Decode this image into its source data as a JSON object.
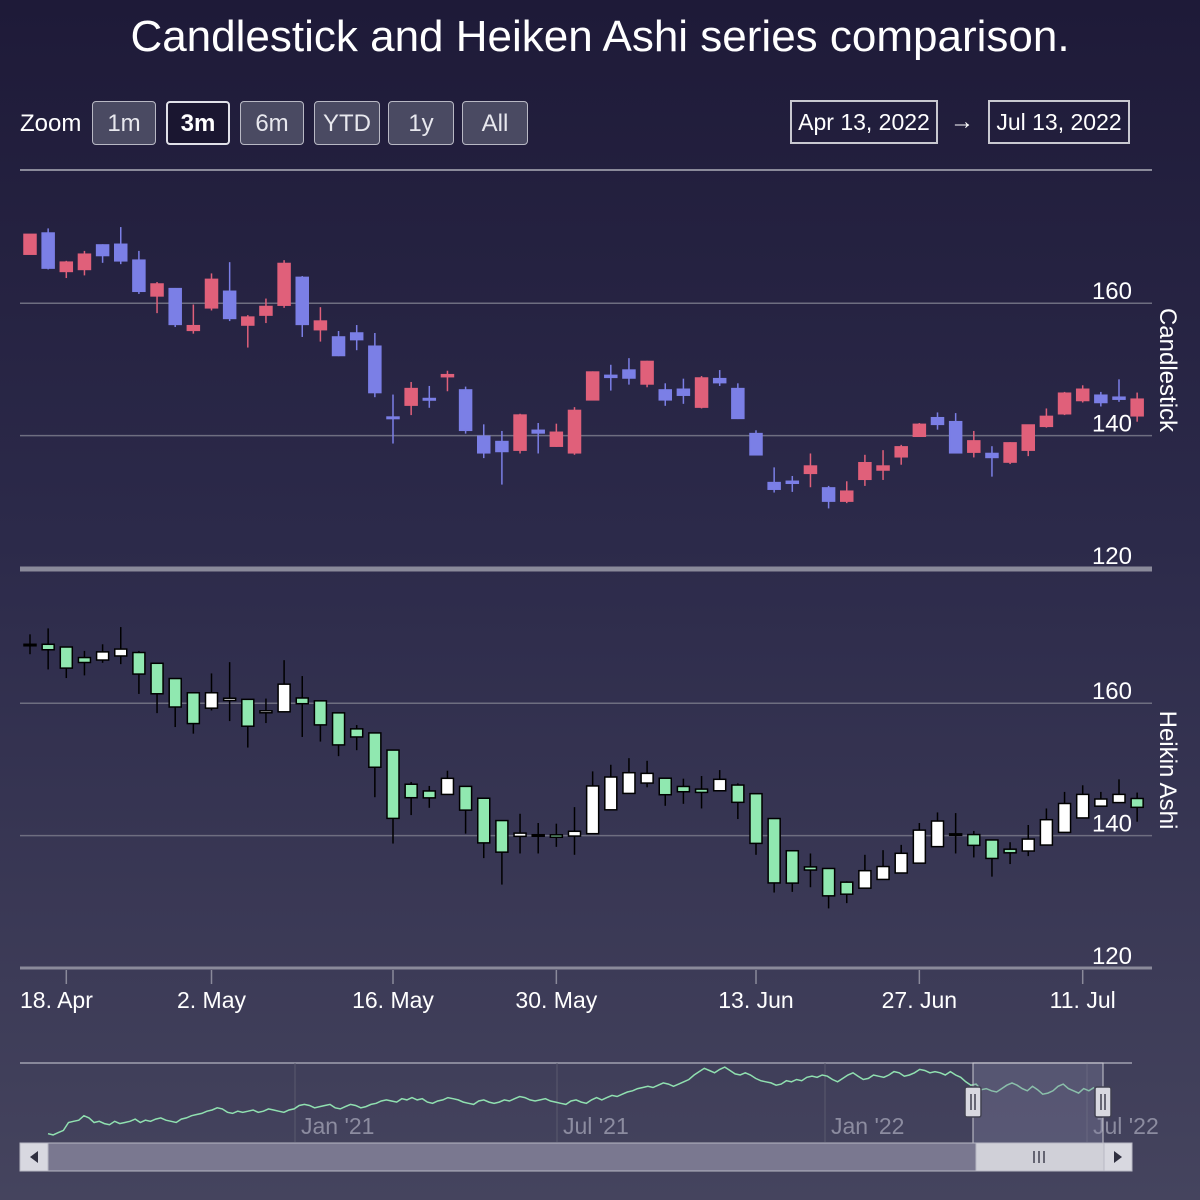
{
  "title": "Candlestick and Heiken Ashi series comparison.",
  "range_selector": {
    "zoom_label": "Zoom",
    "buttons": [
      "1m",
      "3m",
      "6m",
      "YTD",
      "1y",
      "All"
    ],
    "selected": "3m",
    "from": "Apr 13, 2022",
    "arrow": "→",
    "to": "Jul 13, 2022"
  },
  "colors": {
    "candle_up": "#e0607a",
    "candle_down": "#7b7fe6",
    "ha_up": "#ffffff",
    "ha_down": "#90e8b0",
    "navigator_line": "#90e0b0"
  },
  "chart_data": [
    {
      "type": "candlestick",
      "title": "Candlestick and Heiken Ashi series comparison.",
      "ylabel": "Candlestick",
      "ylim": [
        120,
        170
      ],
      "yticks": [
        120,
        140,
        160
      ],
      "grid": true,
      "date_ticks": [
        "18. Apr",
        "2. May",
        "16. May",
        "30. May",
        "13. Jun",
        "27. Jun",
        "11. Jul"
      ],
      "points": [
        {
          "date": "2022-04-13",
          "open": 167.4,
          "high": 170.4,
          "low": 167.4,
          "close": 170.4
        },
        {
          "date": "2022-04-14",
          "open": 170.6,
          "high": 171.3,
          "low": 165.1,
          "close": 165.3
        },
        {
          "date": "2022-04-18",
          "open": 164.8,
          "high": 166.4,
          "low": 163.8,
          "close": 166.2
        },
        {
          "date": "2022-04-19",
          "open": 165.1,
          "high": 167.9,
          "low": 164.2,
          "close": 167.4
        },
        {
          "date": "2022-04-20",
          "open": 168.8,
          "high": 168.9,
          "low": 166.1,
          "close": 167.2
        },
        {
          "date": "2022-04-21",
          "open": 168.9,
          "high": 171.5,
          "low": 165.9,
          "close": 166.4
        },
        {
          "date": "2022-04-22",
          "open": 166.5,
          "high": 167.9,
          "low": 161.4,
          "close": 161.8
        },
        {
          "date": "2022-04-25",
          "open": 161.1,
          "high": 163.2,
          "low": 158.5,
          "close": 162.9
        },
        {
          "date": "2022-04-26",
          "open": 162.2,
          "high": 162.3,
          "low": 156.4,
          "close": 156.8
        },
        {
          "date": "2022-04-27",
          "open": 155.9,
          "high": 159.8,
          "low": 155.4,
          "close": 156.6
        },
        {
          "date": "2022-04-28",
          "open": 159.3,
          "high": 164.5,
          "low": 158.9,
          "close": 163.6
        },
        {
          "date": "2022-04-29",
          "open": 161.8,
          "high": 166.2,
          "low": 157.3,
          "close": 157.7
        },
        {
          "date": "2022-05-02",
          "open": 156.7,
          "high": 158.2,
          "low": 153.3,
          "close": 157.9
        },
        {
          "date": "2022-05-03",
          "open": 158.2,
          "high": 160.7,
          "low": 157.0,
          "close": 159.5
        },
        {
          "date": "2022-05-04",
          "open": 159.7,
          "high": 166.5,
          "low": 159.3,
          "close": 166.0
        },
        {
          "date": "2022-05-05",
          "open": 163.9,
          "high": 164.1,
          "low": 154.9,
          "close": 156.8
        },
        {
          "date": "2022-05-06",
          "open": 156.0,
          "high": 159.4,
          "low": 154.2,
          "close": 157.3
        },
        {
          "date": "2022-05-09",
          "open": 154.9,
          "high": 155.8,
          "low": 152.0,
          "close": 152.1
        },
        {
          "date": "2022-05-10",
          "open": 155.5,
          "high": 156.7,
          "low": 152.9,
          "close": 154.5
        },
        {
          "date": "2022-05-11",
          "open": 153.5,
          "high": 155.5,
          "low": 145.8,
          "close": 146.5
        },
        {
          "date": "2022-05-12",
          "open": 142.8,
          "high": 146.2,
          "low": 138.8,
          "close": 142.6
        },
        {
          "date": "2022-05-13",
          "open": 144.6,
          "high": 148.1,
          "low": 143.1,
          "close": 147.1
        },
        {
          "date": "2022-05-16",
          "open": 145.6,
          "high": 147.5,
          "low": 144.2,
          "close": 145.5
        },
        {
          "date": "2022-05-17",
          "open": 148.9,
          "high": 149.8,
          "low": 146.7,
          "close": 149.2
        },
        {
          "date": "2022-05-18,",
          "open": 146.9,
          "high": 147.4,
          "low": 140.3,
          "close": 140.8
        },
        {
          "date": "2022-05-19",
          "open": 139.9,
          "high": 141.7,
          "low": 136.6,
          "close": 137.4
        },
        {
          "date": "2022-05-20",
          "open": 139.1,
          "high": 140.7,
          "low": 132.6,
          "close": 137.6
        },
        {
          "date": "2022-05-23",
          "open": 137.8,
          "high": 143.3,
          "low": 137.3,
          "close": 143.1
        },
        {
          "date": "2022-05-24",
          "open": 140.8,
          "high": 141.9,
          "low": 137.3,
          "close": 140.4
        },
        {
          "date": "2022-05-25",
          "open": 138.4,
          "high": 141.8,
          "low": 138.3,
          "close": 140.5
        },
        {
          "date": "2022-05-26",
          "open": 137.4,
          "high": 144.3,
          "low": 137.1,
          "close": 143.8
        },
        {
          "date": "2022-05-27",
          "open": 145.4,
          "high": 149.7,
          "low": 145.3,
          "close": 149.6
        },
        {
          "date": "2022-05-31",
          "open": 149.1,
          "high": 150.7,
          "low": 146.8,
          "close": 148.8
        },
        {
          "date": "2022-06-01",
          "open": 149.9,
          "high": 151.7,
          "low": 147.7,
          "close": 148.7
        },
        {
          "date": "2022-06-02",
          "open": 147.8,
          "high": 151.3,
          "low": 147.3,
          "close": 151.2
        },
        {
          "date": "2022-06-03",
          "open": 146.9,
          "high": 147.9,
          "low": 144.5,
          "close": 145.4
        },
        {
          "date": "2022-06-06",
          "open": 147.0,
          "high": 148.6,
          "low": 144.8,
          "close": 146.1
        },
        {
          "date": "2022-06-07",
          "open": 144.3,
          "high": 149.0,
          "low": 144.1,
          "close": 148.7
        },
        {
          "date": "2022-06-08",
          "open": 148.6,
          "high": 149.9,
          "low": 147.5,
          "close": 148.0
        },
        {
          "date": "2022-06-09",
          "open": 147.1,
          "high": 147.9,
          "low": 142.5,
          "close": 142.6
        },
        {
          "date": "2022-06-10",
          "open": 140.3,
          "high": 140.8,
          "low": 137.1,
          "close": 137.1
        },
        {
          "date": "2022-06-13",
          "open": 132.9,
          "high": 135.2,
          "low": 131.4,
          "close": 131.9
        },
        {
          "date": "2022-06-14",
          "open": 133.1,
          "high": 133.9,
          "low": 131.5,
          "close": 132.8
        },
        {
          "date": "2022-06-15",
          "open": 134.3,
          "high": 137.3,
          "low": 132.2,
          "close": 135.4
        },
        {
          "date": "2022-06-16",
          "open": 132.1,
          "high": 132.4,
          "low": 129.0,
          "close": 130.1
        },
        {
          "date": "2022-06-17",
          "open": 130.1,
          "high": 133.1,
          "low": 129.8,
          "close": 131.6
        },
        {
          "date": "2022-06-21",
          "open": 133.4,
          "high": 137.1,
          "low": 132.4,
          "close": 135.9
        },
        {
          "date": "2022-06-22",
          "open": 134.8,
          "high": 137.8,
          "low": 133.3,
          "close": 135.4
        },
        {
          "date": "2022-06-23",
          "open": 136.8,
          "high": 138.6,
          "low": 135.6,
          "close": 138.3
        },
        {
          "date": "2022-06-24",
          "open": 139.9,
          "high": 141.9,
          "low": 139.8,
          "close": 141.7
        },
        {
          "date": "2022-06-27",
          "open": 142.7,
          "high": 143.5,
          "low": 140.9,
          "close": 141.7
        },
        {
          "date": "2022-06-28",
          "open": 142.1,
          "high": 143.4,
          "low": 137.3,
          "close": 137.4
        },
        {
          "date": "2022-06-29",
          "open": 137.5,
          "high": 140.7,
          "low": 136.7,
          "close": 139.2
        },
        {
          "date": "2022-06-30",
          "open": 137.3,
          "high": 138.4,
          "low": 133.8,
          "close": 136.7
        },
        {
          "date": "2022-07-01",
          "open": 136.0,
          "high": 139.0,
          "low": 135.7,
          "close": 138.9
        },
        {
          "date": "2022-07-05",
          "open": 137.8,
          "high": 141.6,
          "low": 136.9,
          "close": 141.6
        },
        {
          "date": "2022-07-06",
          "open": 141.4,
          "high": 144.1,
          "low": 141.2,
          "close": 142.9
        },
        {
          "date": "2022-07-07",
          "open": 143.3,
          "high": 146.6,
          "low": 143.1,
          "close": 146.4
        },
        {
          "date": "2022-07-08",
          "open": 145.3,
          "high": 147.6,
          "low": 145.0,
          "close": 147.0
        },
        {
          "date": "2022-07-11",
          "open": 146.1,
          "high": 146.6,
          "low": 144.4,
          "close": 145.0
        },
        {
          "date": "2022-07-12",
          "open": 145.8,
          "high": 148.5,
          "low": 145.1,
          "close": 145.5
        },
        {
          "date": "2022-07-13",
          "open": 142.99,
          "high": 146.5,
          "low": 142.1,
          "close": 145.5
        }
      ]
    },
    {
      "type": "heikinashi",
      "ylabel": "Heikin Ashi",
      "ylim": [
        120,
        170
      ],
      "yticks": [
        120,
        140,
        160
      ],
      "grid": true,
      "derived_from": "candlestick"
    },
    {
      "type": "line",
      "role": "navigator",
      "x_labels": [
        "Jan '21",
        "Jul '21",
        "Jan '22",
        "Jul '22"
      ],
      "values": [
        120,
        119,
        121,
        123,
        130,
        131,
        132,
        136,
        134,
        130,
        131,
        129,
        128,
        131,
        129,
        130,
        131,
        133,
        130,
        132,
        131,
        133,
        134,
        132,
        131,
        130,
        133,
        134,
        136,
        137,
        138,
        140,
        141,
        143,
        142,
        139,
        138,
        140,
        139,
        140,
        141,
        139,
        140,
        142,
        141,
        140,
        139,
        141,
        142,
        145,
        146,
        145,
        143,
        144,
        145,
        146,
        143,
        142,
        144,
        146,
        145,
        143,
        144,
        146,
        147,
        149,
        150,
        149,
        148,
        151,
        150,
        152,
        150,
        151,
        148,
        147,
        149,
        150,
        152,
        151,
        150,
        148,
        147,
        146,
        149,
        150,
        148,
        147,
        148,
        150,
        149,
        151,
        153,
        152,
        150,
        149,
        150,
        151,
        149,
        148,
        147,
        146,
        149,
        150,
        148,
        147,
        150,
        152,
        150,
        152,
        154,
        153,
        155,
        157,
        158,
        160,
        161,
        162,
        161,
        163,
        165,
        164,
        162,
        164,
        166,
        168,
        172,
        175,
        178,
        176,
        174,
        177,
        179,
        176,
        173,
        172,
        174,
        172,
        169,
        167,
        166,
        165,
        163,
        164,
        167,
        166,
        168,
        167,
        170,
        171,
        170,
        172,
        171,
        168,
        166,
        169,
        172,
        174,
        171,
        168,
        169,
        172,
        171,
        170,
        172,
        175,
        174,
        171,
        172,
        174,
        177,
        176,
        174,
        175,
        174,
        172,
        175,
        172,
        170,
        166,
        163,
        164,
        159,
        160,
        158,
        157,
        160,
        163,
        165,
        163,
        160,
        158,
        162,
        159,
        155,
        156,
        158,
        162,
        164,
        160,
        158,
        156,
        160,
        158,
        161
      ]
    }
  ]
}
